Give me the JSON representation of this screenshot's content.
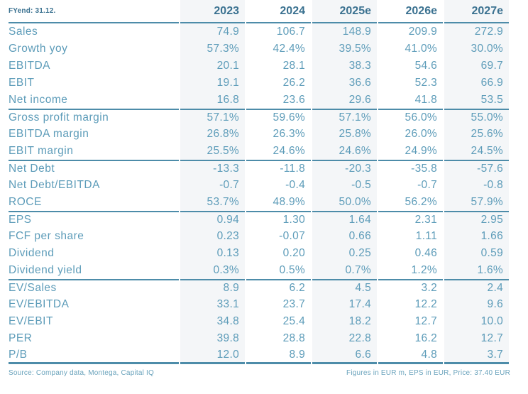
{
  "table": {
    "fyend_label": "FYend: 31.12.",
    "columns": [
      "2023",
      "2024",
      "2025e",
      "2026e",
      "2027e"
    ],
    "shaded_column_indexes": [
      0,
      2,
      4
    ],
    "sections": [
      {
        "name": "pnl",
        "rows": [
          {
            "label": "Sales",
            "values": [
              "74.9",
              "106.7",
              "148.9",
              "209.9",
              "272.9"
            ]
          },
          {
            "label": "Growth yoy",
            "values": [
              "57.3%",
              "42.4%",
              "39.5%",
              "41.0%",
              "30.0%"
            ]
          },
          {
            "label": "EBITDA",
            "values": [
              "20.1",
              "28.1",
              "38.3",
              "54.6",
              "69.7"
            ]
          },
          {
            "label": "EBIT",
            "values": [
              "19.1",
              "26.2",
              "36.6",
              "52.3",
              "66.9"
            ]
          },
          {
            "label": "Net income",
            "values": [
              "16.8",
              "23.6",
              "29.6",
              "41.8",
              "53.5"
            ]
          }
        ]
      },
      {
        "name": "margins",
        "rows": [
          {
            "label": "Gross profit margin",
            "values": [
              "57.1%",
              "59.6%",
              "57.1%",
              "56.0%",
              "55.0%"
            ]
          },
          {
            "label": "EBITDA margin",
            "values": [
              "26.8%",
              "26.3%",
              "25.8%",
              "26.0%",
              "25.6%"
            ]
          },
          {
            "label": "EBIT margin",
            "values": [
              "25.5%",
              "24.6%",
              "24.6%",
              "24.9%",
              "24.5%"
            ]
          }
        ]
      },
      {
        "name": "balance-sheet",
        "rows": [
          {
            "label": "Net Debt",
            "values": [
              "-13.3",
              "-11.8",
              "-20.3",
              "-35.8",
              "-57.6"
            ]
          },
          {
            "label": "Net Debt/EBITDA",
            "values": [
              "-0.7",
              "-0.4",
              "-0.5",
              "-0.7",
              "-0.8"
            ]
          },
          {
            "label": "ROCE",
            "values": [
              "53.7%",
              "48.9%",
              "50.0%",
              "56.2%",
              "57.9%"
            ]
          }
        ]
      },
      {
        "name": "per-share",
        "rows": [
          {
            "label": "EPS",
            "values": [
              "0.94",
              "1.30",
              "1.64",
              "2.31",
              "2.95"
            ]
          },
          {
            "label": "FCF per share",
            "values": [
              "0.23",
              "-0.07",
              "0.66",
              "1.11",
              "1.66"
            ]
          },
          {
            "label": "Dividend",
            "values": [
              "0.13",
              "0.20",
              "0.25",
              "0.46",
              "0.59"
            ]
          },
          {
            "label": "Dividend yield",
            "values": [
              "0.3%",
              "0.5%",
              "0.7%",
              "1.2%",
              "1.6%"
            ]
          }
        ]
      },
      {
        "name": "valuation",
        "rows": [
          {
            "label": "EV/Sales",
            "values": [
              "8.9",
              "6.2",
              "4.5",
              "3.2",
              "2.4"
            ]
          },
          {
            "label": "EV/EBITDA",
            "values": [
              "33.1",
              "23.7",
              "17.4",
              "12.2",
              "9.6"
            ]
          },
          {
            "label": "EV/EBIT",
            "values": [
              "34.8",
              "25.4",
              "18.2",
              "12.7",
              "10.0"
            ]
          },
          {
            "label": "PER",
            "values": [
              "39.8",
              "28.8",
              "22.8",
              "16.2",
              "12.7"
            ]
          },
          {
            "label": "P/B",
            "values": [
              "12.0",
              "8.9",
              "6.6",
              "4.8",
              "3.7"
            ]
          }
        ]
      }
    ]
  },
  "footer": {
    "source": "Source: Company data, Montega, Capital IQ",
    "note": "Figures in EUR m, EPS in EUR, Price: 37.40 EUR"
  },
  "colors": {
    "header_text": "#3a7190",
    "body_text": "#5d9cb9",
    "line": "#4d8ca9",
    "shaded_column": "#f4f6f8",
    "footer_text": "#6aa3bc"
  }
}
